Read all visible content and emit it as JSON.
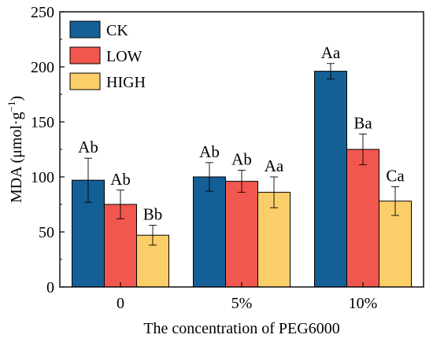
{
  "chart_data": {
    "type": "bar",
    "xlabel": "The concentration of PEG6000",
    "ylabel": "MDA (μmol·g",
    "ylabel_sup": "−1",
    "ylabel_close": ")",
    "ylim": [
      0,
      250
    ],
    "yticks": [
      0,
      50,
      100,
      150,
      200,
      250
    ],
    "categories": [
      "0",
      "5%",
      "10%"
    ],
    "grid": false,
    "legend_position": "top-left",
    "series": [
      {
        "name": "CK",
        "color": "#145f96",
        "values": [
          97,
          100,
          196
        ],
        "errors": [
          20,
          13,
          7
        ],
        "labels": [
          "Ab",
          "Ab",
          "Aa"
        ]
      },
      {
        "name": "LOW",
        "color": "#f2574f",
        "values": [
          75,
          96,
          125
        ],
        "errors": [
          13,
          10,
          14
        ],
        "labels": [
          "Ab",
          "Ab",
          "Ba"
        ]
      },
      {
        "name": "HIGH",
        "color": "#fbce69",
        "values": [
          47,
          86,
          78
        ],
        "errors": [
          9,
          14,
          13
        ],
        "labels": [
          "Bb",
          "Aa",
          "Ca"
        ]
      }
    ]
  }
}
